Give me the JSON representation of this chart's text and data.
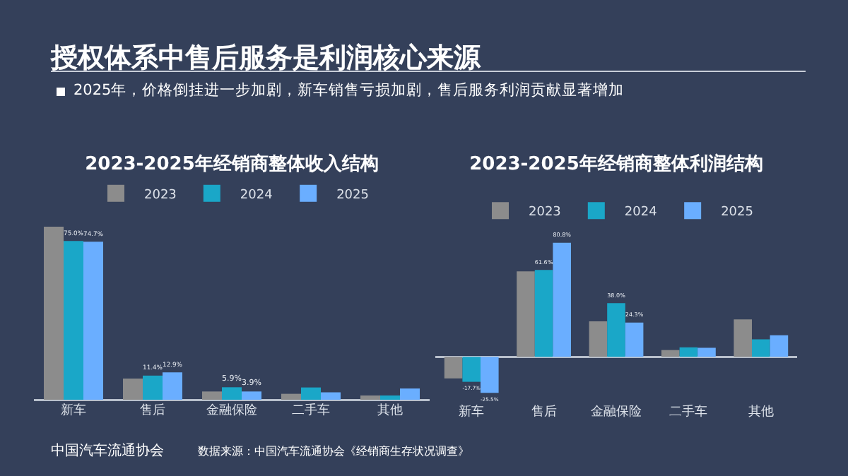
{
  "chart_data": [
    {
      "type": "bar",
      "title": "2023-2025年经销商整体收入结构",
      "categories": [
        "新车",
        "售后",
        "金融保险",
        "二手车",
        "其他"
      ],
      "tick_labels": "x",
      "legend": "top",
      "annotations": [
        "授权体系中售后服务是利润核心来源",
        "2025年，价格倒挂进一步加剧，新车销售亏损加剧，售后服务利润贡献显著增加",
        "中国汽车流通协会"
      ],
      "series": [
        {
          "name": "2023",
          "color": "#8c8c8c",
          "values": [
            81.8,
            10.0,
            3.9,
            2.8,
            2.0
          ]
        },
        {
          "name": "2024",
          "color": "#1aa7c8",
          "values": [
            75.0,
            11.4,
            5.9,
            5.8,
            2.0
          ],
          "value_labels": [
            "75.0%",
            "11.4%",
            "5.9%",
            null,
            null
          ]
        },
        {
          "name": "2025",
          "color": "#6aaeff",
          "values": [
            74.7,
            12.9,
            3.9,
            3.5,
            5.3
          ],
          "value_labels": [
            "74.7%",
            "12.9%",
            "3.9%",
            null,
            null
          ]
        }
      ]
    },
    {
      "type": "bar",
      "title": "2023-2025年经销商整体利润结构",
      "categories": [
        "新车",
        "售后",
        "金融保险",
        "二手车",
        "其他"
      ],
      "tick_labels": "x",
      "legend": "top",
      "annotations": [
        "数据来源：中国汽车流通协会《经销商生存状况调查》"
      ],
      "series": [
        {
          "name": "2023",
          "color": "#8c8c8c",
          "values": [
            -15.3,
            60.5,
            25.2,
            4.8,
            26.5
          ]
        },
        {
          "name": "2024",
          "color": "#1aa7c8",
          "values": [
            -17.7,
            61.6,
            38.0,
            6.7,
            12.4
          ],
          "value_labels": [
            "-17.7%",
            "61.6%",
            "38.0%",
            null,
            null
          ]
        },
        {
          "name": "2025",
          "color": "#6aaeff",
          "values": [
            -25.5,
            80.8,
            24.3,
            6.4,
            15.3
          ],
          "value_labels": [
            "-25.5%",
            "80.8%",
            "24.3%",
            null,
            null
          ]
        }
      ]
    }
  ]
}
